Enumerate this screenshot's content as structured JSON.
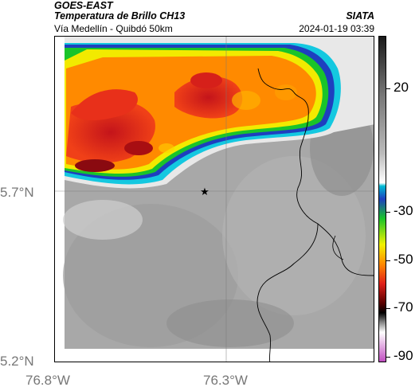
{
  "header": {
    "satellite": "GOES-EAST",
    "product": "Temperatura de Brillo CH13",
    "route": "Vía Medellín - Quibdó 50km",
    "agency": "SIATA",
    "timestamp": "2024-01-19 03:39"
  },
  "map": {
    "lat_labels": [
      "5.7°N",
      "5.2°N"
    ],
    "lon_labels": [
      "76.8°W",
      "76.3°W"
    ],
    "marker": "star"
  },
  "colorbar": {
    "tick_labels": [
      "20",
      "-30",
      "-50",
      "-70",
      "-90"
    ],
    "colors": {
      "warm_top": "#1a1a1a",
      "cyan": "#00bcd4",
      "blue": "#1e3fbf",
      "green": "#19c42a",
      "yellow": "#f2f200",
      "orange": "#ff8a00",
      "red": "#e0201a",
      "dark_red": "#5a0000",
      "magenta": "#c04fc0"
    }
  }
}
